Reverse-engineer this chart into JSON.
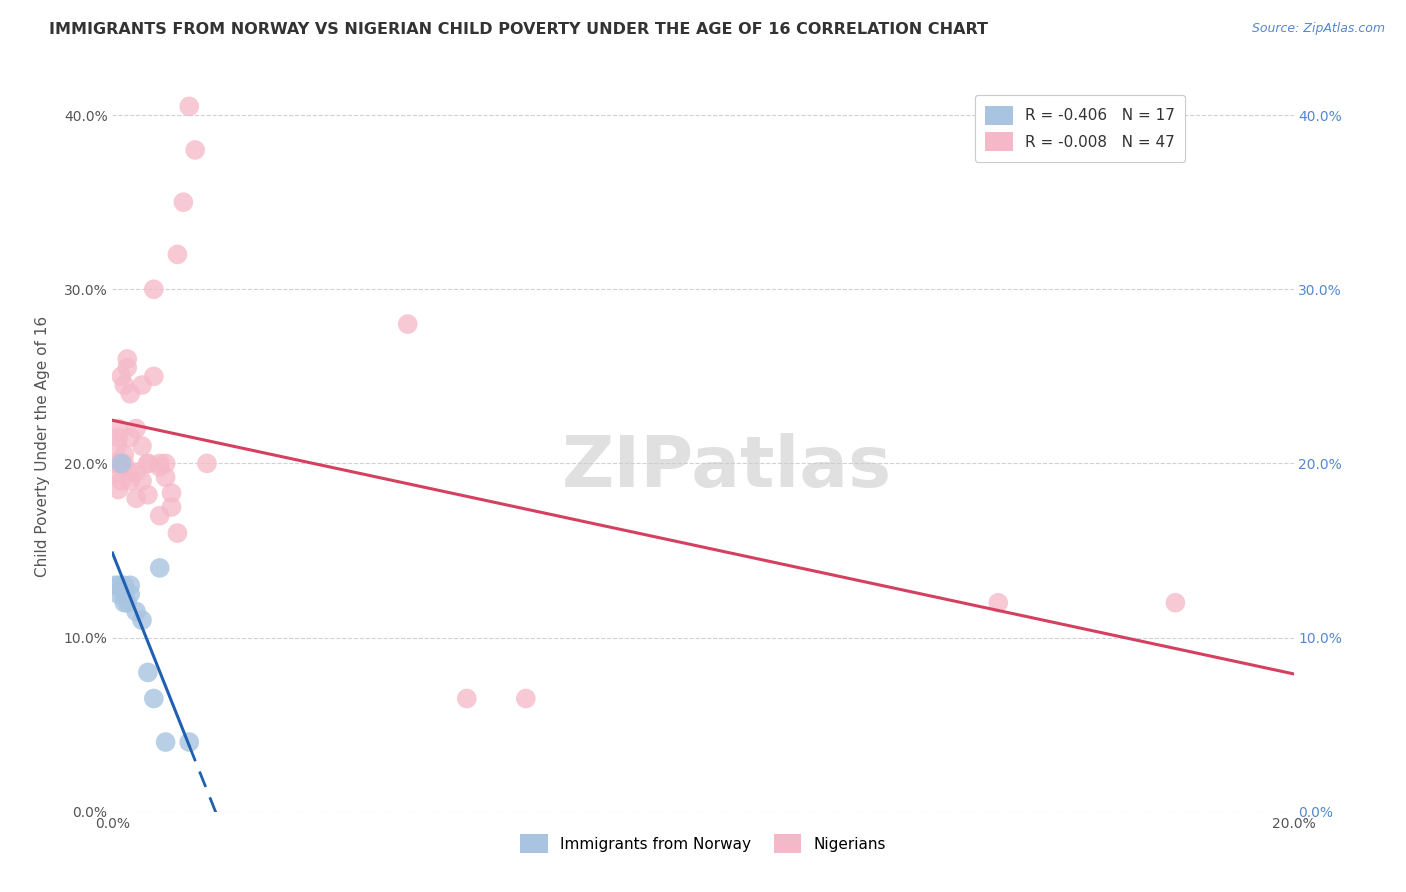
{
  "title": "IMMIGRANTS FROM NORWAY VS NIGERIAN CHILD POVERTY UNDER THE AGE OF 16 CORRELATION CHART",
  "source": "Source: ZipAtlas.com",
  "ylabel": "Child Poverty Under the Age of 16",
  "xlim": [
    0.0,
    0.2
  ],
  "ylim": [
    0.0,
    0.42
  ],
  "xtick_vals": [
    0.0,
    0.2
  ],
  "ytick_vals": [
    0.0,
    0.1,
    0.2,
    0.3,
    0.4
  ],
  "norway_R": "-0.406",
  "norway_N": "17",
  "nigeria_R": "-0.008",
  "nigeria_N": "47",
  "norway_color": "#a8c4e0",
  "nigeria_color": "#f5b8c8",
  "norway_line_color": "#2060b0",
  "nigeria_line_color": "#d44060",
  "norway_x": [
    0.0005,
    0.001,
    0.001,
    0.0015,
    0.002,
    0.002,
    0.002,
    0.0025,
    0.003,
    0.003,
    0.004,
    0.005,
    0.006,
    0.007,
    0.008,
    0.009,
    0.013
  ],
  "norway_y": [
    0.13,
    0.125,
    0.13,
    0.2,
    0.12,
    0.125,
    0.13,
    0.12,
    0.125,
    0.13,
    0.115,
    0.11,
    0.08,
    0.065,
    0.14,
    0.04,
    0.04
  ],
  "nigeria_x": [
    0.0003,
    0.0005,
    0.0008,
    0.001,
    0.001,
    0.001,
    0.001,
    0.0015,
    0.0015,
    0.002,
    0.002,
    0.002,
    0.0025,
    0.0025,
    0.003,
    0.003,
    0.003,
    0.003,
    0.004,
    0.004,
    0.004,
    0.005,
    0.005,
    0.005,
    0.006,
    0.006,
    0.006,
    0.007,
    0.007,
    0.008,
    0.008,
    0.008,
    0.009,
    0.009,
    0.01,
    0.01,
    0.011,
    0.011,
    0.012,
    0.013,
    0.014,
    0.016,
    0.05,
    0.06,
    0.07,
    0.15,
    0.18
  ],
  "nigeria_y": [
    0.2,
    0.195,
    0.21,
    0.2,
    0.215,
    0.185,
    0.22,
    0.25,
    0.19,
    0.245,
    0.2,
    0.205,
    0.255,
    0.26,
    0.215,
    0.24,
    0.19,
    0.195,
    0.195,
    0.22,
    0.18,
    0.245,
    0.19,
    0.21,
    0.2,
    0.182,
    0.2,
    0.25,
    0.3,
    0.2,
    0.198,
    0.17,
    0.2,
    0.192,
    0.183,
    0.175,
    0.16,
    0.32,
    0.35,
    0.405,
    0.38,
    0.2,
    0.28,
    0.065,
    0.065,
    0.12,
    0.12
  ],
  "background_color": "#ffffff",
  "watermark": "ZIPatlas",
  "title_fontsize": 11.5,
  "axis_label_fontsize": 11,
  "tick_fontsize": 10,
  "legend_fontsize": 11,
  "source_fontsize": 9
}
